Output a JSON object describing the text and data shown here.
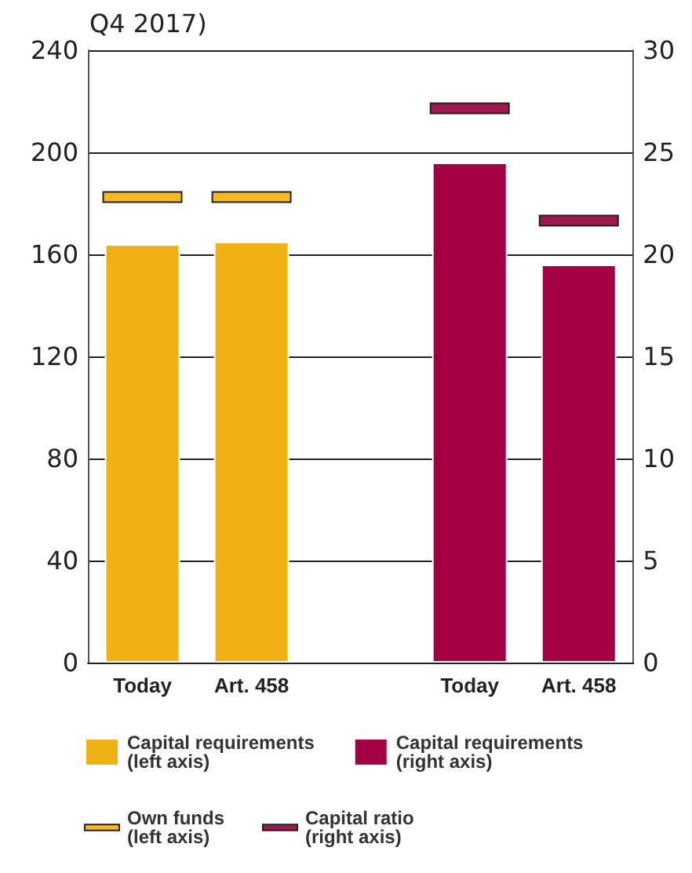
{
  "chart_data": {
    "type": "bar",
    "title": "Q4 2017)",
    "categories": [
      "Today",
      "Art. 458",
      null,
      "Today",
      "Art. 458"
    ],
    "series": [
      {
        "name": "Capital requirements\n(left axis)",
        "color": "#f0b114",
        "values": [
          164,
          165,
          null,
          null,
          null
        ]
      },
      {
        "name": "Capital requirements\n(right axis)",
        "axis": "y2",
        "color": "#a50044",
        "values": [
          null,
          null,
          null,
          24.5,
          19.5
        ]
      },
      {
        "name": "Own funds\n(left axis)",
        "type": "bar",
        "color": "#fbb81e",
        "base": [
          180.5,
          180.5,
          null,
          null,
          null
        ],
        "values": [
          4,
          4,
          null,
          null,
          null
        ]
      },
      {
        "name": "Capital ratio\n(right axis)",
        "type": "bar",
        "axis": "y2",
        "color": "#a0184c",
        "base": [
          null,
          null,
          null,
          26.9,
          21.4
        ],
        "values": [
          null,
          null,
          null,
          0.5,
          0.5
        ]
      }
    ],
    "ylim": [
      0,
      240
    ],
    "yticks": [
      0,
      40,
      80,
      120,
      160,
      200,
      240
    ],
    "y2lim": [
      0,
      30
    ],
    "y2ticks": [
      0,
      5,
      10,
      15,
      20,
      25,
      30
    ],
    "grid": "y",
    "legend": "bottom"
  }
}
